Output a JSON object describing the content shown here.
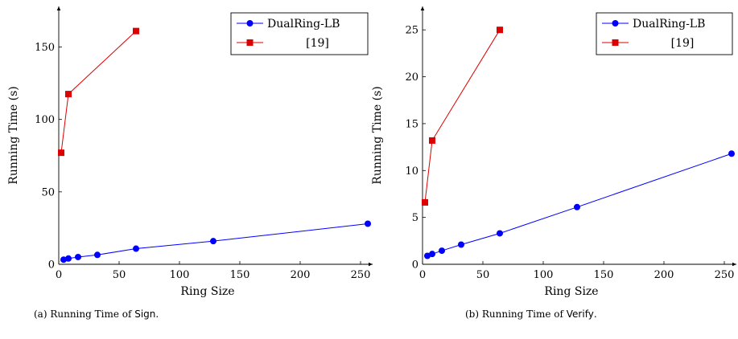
{
  "captions": [
    {
      "prefix": "(a) Running Time of ",
      "name": "Sign",
      "suffix": "."
    },
    {
      "prefix": "(b) Running Time of ",
      "name": "Verify",
      "suffix": "."
    }
  ],
  "chart_data": [
    {
      "type": "line",
      "xlabel": "Ring Size",
      "ylabel": "Running Time (s)",
      "xlim": [
        0,
        260
      ],
      "ylim": [
        0,
        178
      ],
      "xticks": [
        0,
        50,
        100,
        150,
        200,
        250
      ],
      "yticks": [
        0,
        50,
        100,
        150
      ],
      "grid": false,
      "legend": "top-right",
      "series": [
        {
          "name": "DualRing-LB",
          "color": "#0000ff",
          "marker": "circle",
          "x": [
            4,
            8,
            16,
            32,
            64,
            128,
            256
          ],
          "y": [
            3.2,
            4.0,
            5.0,
            6.5,
            10.8,
            16.0,
            28.0
          ]
        },
        {
          "name": "[19]",
          "color": "#dd0000",
          "marker": "square",
          "x": [
            2,
            8,
            64
          ],
          "y": [
            77.0,
            117.5,
            161.0
          ]
        }
      ]
    },
    {
      "type": "line",
      "xlabel": "Ring Size",
      "ylabel": "Running Time (s)",
      "xlim": [
        0,
        260
      ],
      "ylim": [
        0,
        27.5
      ],
      "xticks": [
        0,
        50,
        100,
        150,
        200,
        250
      ],
      "yticks": [
        0,
        5,
        10,
        15,
        20,
        25
      ],
      "grid": false,
      "legend": "top-right",
      "series": [
        {
          "name": "DualRing-LB",
          "color": "#0000ff",
          "marker": "circle",
          "x": [
            4,
            8,
            16,
            32,
            64,
            128,
            256
          ],
          "y": [
            0.9,
            1.1,
            1.45,
            2.1,
            3.3,
            6.1,
            11.8
          ]
        },
        {
          "name": "[19]",
          "color": "#dd0000",
          "marker": "square",
          "x": [
            2,
            8,
            64
          ],
          "y": [
            6.6,
            13.2,
            25.0
          ]
        }
      ]
    }
  ]
}
